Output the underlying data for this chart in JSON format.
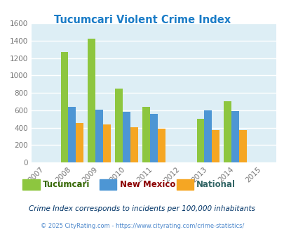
{
  "title": "Tucumcari Violent Crime Index",
  "title_color": "#1a7cc7",
  "years": [
    2007,
    2008,
    2009,
    2010,
    2011,
    2012,
    2013,
    2014,
    2015
  ],
  "data_years": [
    2008,
    2009,
    2010,
    2011,
    2013,
    2014
  ],
  "tucumcari": [
    1270,
    1420,
    850,
    640,
    500,
    700
  ],
  "new_mexico": [
    640,
    610,
    585,
    560,
    595,
    590
  ],
  "national": [
    455,
    435,
    405,
    385,
    370,
    370
  ],
  "colors": {
    "tucumcari": "#8dc63f",
    "new_mexico": "#4d96d4",
    "national": "#f5a623"
  },
  "ylim": [
    0,
    1600
  ],
  "yticks": [
    0,
    200,
    400,
    600,
    800,
    1000,
    1200,
    1400,
    1600
  ],
  "bg_color": "#ddeef5",
  "grid_color": "#ffffff",
  "legend_labels": [
    "Tucumcari",
    "New Mexico",
    "National"
  ],
  "legend_label_colors": [
    "#336600",
    "#8b0000",
    "#336666"
  ],
  "footnote1": "Crime Index corresponds to incidents per 100,000 inhabitants",
  "footnote2": "© 2025 CityRating.com - https://www.cityrating.com/crime-statistics/",
  "footnote1_color": "#003366",
  "footnote2_color": "#4d88cc",
  "bar_width": 0.28
}
